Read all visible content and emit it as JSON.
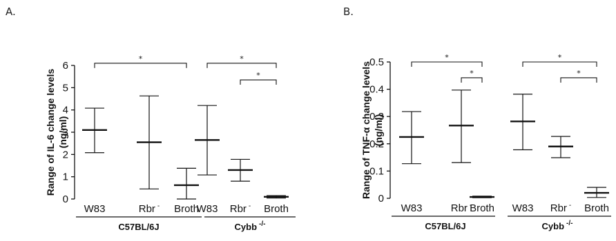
{
  "chart_data": [
    {
      "type": "box",
      "panel_label": "A.",
      "ylabel": "Range of IL-6 change levels",
      "ylabel_unit": "(ng/ml)",
      "ylim": [
        0,
        6
      ],
      "yticks": [
        "0",
        "1",
        "2",
        "3",
        "4",
        "5",
        "6"
      ],
      "groups": [
        "C57BL/6J",
        "Cybb -/-"
      ],
      "categories": [
        "W83",
        "Rbr -",
        "Broth",
        "W83",
        "Rbr -",
        "Broth"
      ],
      "series": [
        {
          "group": "C57BL/6J",
          "category": "W83",
          "median": 3.1,
          "low": 2.08,
          "high": 4.08
        },
        {
          "group": "C57BL/6J",
          "category": "Rbr -",
          "median": 2.55,
          "low": 0.45,
          "high": 4.63
        },
        {
          "group": "C57BL/6J",
          "category": "Broth",
          "median": 0.62,
          "low": 0.0,
          "high": 1.38
        },
        {
          "group": "Cybb -/-",
          "category": "W83",
          "median": 2.65,
          "low": 1.08,
          "high": 4.2
        },
        {
          "group": "Cybb -/-",
          "category": "Rbr -",
          "median": 1.3,
          "low": 0.8,
          "high": 1.78
        },
        {
          "group": "Cybb -/-",
          "category": "Broth",
          "median": 0.1,
          "low": 0.04,
          "high": 0.15
        }
      ],
      "significance": [
        {
          "from": 0,
          "to": 2,
          "label": "*"
        },
        {
          "from": 3,
          "to": 5,
          "label": "*"
        },
        {
          "from": 4,
          "to": 5,
          "label": "*"
        }
      ]
    },
    {
      "type": "box",
      "panel_label": "B.",
      "ylabel": "Range of TNF-α change levels",
      "ylabel_unit": "(ng/ml)",
      "ylim": [
        0,
        0.5
      ],
      "yticks": [
        "0",
        "0.1",
        "0.2",
        "0.3",
        "0.4",
        "0.5"
      ],
      "groups": [
        "C57BL/6J",
        "Cybb -/-"
      ],
      "categories": [
        "W83",
        "Rbr -",
        "Broth",
        "W83",
        "Rbr -",
        "Broth"
      ],
      "series": [
        {
          "group": "C57BL/6J",
          "category": "W83",
          "median": 0.225,
          "low": 0.127,
          "high": 0.318
        },
        {
          "group": "C57BL/6J",
          "category": "Rbr -",
          "median": 0.267,
          "low": 0.131,
          "high": 0.397
        },
        {
          "group": "C57BL/6J",
          "category": "Broth",
          "median": 0.005,
          "low": 0.002,
          "high": 0.008
        },
        {
          "group": "Cybb -/-",
          "category": "W83",
          "median": 0.282,
          "low": 0.178,
          "high": 0.382
        },
        {
          "group": "Cybb -/-",
          "category": "Rbr -",
          "median": 0.19,
          "low": 0.149,
          "high": 0.227
        },
        {
          "group": "Cybb -/-",
          "category": "Broth",
          "median": 0.02,
          "low": 0.003,
          "high": 0.04
        }
      ],
      "significance": [
        {
          "from": 0,
          "to": 2,
          "label": "*"
        },
        {
          "from": 1,
          "to": 2,
          "label": "*"
        },
        {
          "from": 3,
          "to": 5,
          "label": "*"
        },
        {
          "from": 4,
          "to": 5,
          "label": "*"
        }
      ]
    }
  ]
}
